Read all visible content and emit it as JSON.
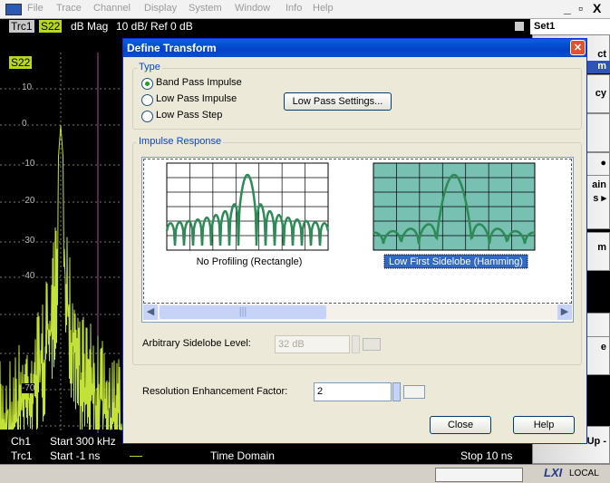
{
  "menu": [
    "File",
    "Trace",
    "Channel",
    "Display",
    "System",
    "Window",
    "Info",
    "Help"
  ],
  "window_buttons": [
    "_",
    "▫",
    "X"
  ],
  "trace_header": {
    "trace": "Trc1",
    "param": "S22",
    "format": "dB Mag",
    "scale": "10 dB/ Ref 0 dB",
    "set": "Set1"
  },
  "channel_label": "S22",
  "axis_labels": [
    "10",
    "0",
    "-10",
    "-20",
    "-30",
    "-40",
    "-70"
  ],
  "softkeys": [
    "ct",
    "m",
    "cy",
    "●",
    "ain",
    "s ▸",
    "m",
    "e",
    "- Menu Up -"
  ],
  "footer": {
    "ch": "Ch1",
    "ch_start": "Start 300 kHz",
    "trc": "Trc1",
    "trc_start": "Start -1 ns",
    "mode": "Time Domain",
    "stop": "Stop 10 ns",
    "lxi": "LXI",
    "local": "LOCAL"
  },
  "dialog": {
    "title": "Define Transform",
    "close_icon": "✕",
    "type_group": "Type",
    "options": [
      "Band Pass Impulse",
      "Low Pass Impulse",
      "Low Pass Step"
    ],
    "selected": 0,
    "low_pass_button": "Low Pass Settings...",
    "impulse_group": "Impulse Response",
    "windows": [
      "No Profiling (Rectangle)",
      "Low First Sidelobe (Hamming)"
    ],
    "selected_window": 1,
    "sidelobe_label": "Arbitrary Sidelobe Level:",
    "sidelobe_value": "32 dB",
    "ref_label": "Resolution Enhancement Factor:",
    "ref_value": "2",
    "close": "Close",
    "help": "Help"
  }
}
